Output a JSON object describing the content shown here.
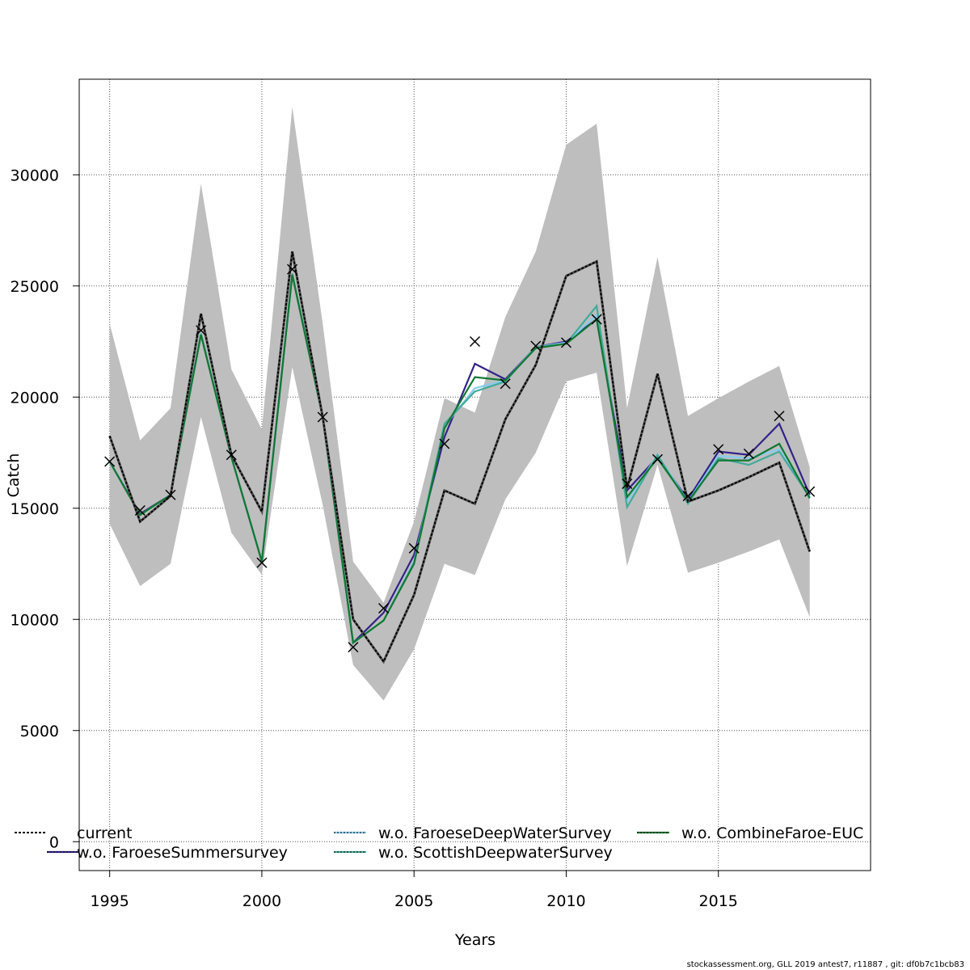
{
  "chart_data": {
    "type": "line",
    "xlabel": "Years",
    "ylabel": "Catch",
    "xlim": [
      1994,
      2020
    ],
    "ylim": [
      -1300,
      34300
    ],
    "grid": true,
    "x_ticks": [
      1995,
      2000,
      2005,
      2010,
      2015
    ],
    "y_ticks": [
      0,
      5000,
      10000,
      15000,
      20000,
      25000,
      30000
    ],
    "legend_position": "bottom",
    "x": [
      1995,
      1996,
      1997,
      1998,
      1999,
      2000,
      2001,
      2002,
      2003,
      2004,
      2005,
      2006,
      2007,
      2008,
      2009,
      2010,
      2011,
      2012,
      2013,
      2014,
      2015,
      2016,
      2017,
      2018
    ],
    "observed": [
      17100,
      14900,
      15600,
      23000,
      17400,
      12550,
      25750,
      19100,
      8750,
      10500,
      13200,
      17900,
      22500,
      20600,
      22300,
      22450,
      23500,
      16100,
      17200,
      15550,
      17650,
      17450,
      19150,
      15750
    ],
    "band": {
      "color": "#bebebe",
      "upper": [
        23300,
        18050,
        19500,
        29600,
        21250,
        18550,
        33050,
        23300,
        12600,
        10750,
        14400,
        19950,
        19300,
        23600,
        26550,
        31350,
        32300,
        19500,
        26300,
        19150,
        19950,
        20700,
        21400,
        16850
      ],
      "lower": [
        14300,
        11500,
        12500,
        19100,
        13900,
        12000,
        21350,
        15150,
        7950,
        6350,
        8650,
        12500,
        12000,
        15400,
        17500,
        20700,
        21100,
        12400,
        16950,
        12100,
        12550,
        13050,
        13600,
        10100
      ]
    },
    "series": [
      {
        "name": "current",
        "color": "#000000",
        "style": "dashed",
        "values": [
          18250,
          14400,
          15550,
          23750,
          17400,
          14850,
          26550,
          19100,
          10000,
          8100,
          11100,
          15800,
          15200,
          19000,
          21450,
          25450,
          26100,
          15900,
          21050,
          15300,
          15800,
          16400,
          17050,
          13050
        ]
      },
      {
        "name": "w.o. FaroeseSummersurvey",
        "color": "#332288",
        "style": "solid",
        "values": [
          17100,
          14750,
          15600,
          22850,
          17300,
          12600,
          25550,
          19100,
          8950,
          10300,
          12900,
          18200,
          21500,
          20800,
          22250,
          22500,
          23500,
          15800,
          17300,
          15400,
          17550,
          17400,
          18800,
          15600
        ]
      },
      {
        "name": "w.o. FaroeseDeepWaterSurvey",
        "color": "#88CCEE",
        "style": "solid",
        "values": [
          17100,
          14700,
          15600,
          22850,
          17300,
          12600,
          25550,
          19100,
          8950,
          9950,
          12600,
          18700,
          20400,
          20750,
          22250,
          22450,
          23700,
          15300,
          17400,
          15300,
          17350,
          17250,
          17650,
          15500
        ]
      },
      {
        "name": "w.o. ScottishDeepwaterSurvey",
        "color": "#44AA99",
        "style": "solid",
        "values": [
          17100,
          14700,
          15600,
          22850,
          17300,
          12600,
          25550,
          19100,
          8950,
          9950,
          12550,
          18800,
          20250,
          20700,
          22250,
          22400,
          24100,
          15050,
          17400,
          15200,
          17250,
          16950,
          17550,
          15500
        ]
      },
      {
        "name": "w.o. CombineFaroe-EUC",
        "color": "#117733",
        "style": "solid",
        "values": [
          17100,
          14700,
          15600,
          22800,
          17300,
          12600,
          25500,
          19100,
          8950,
          9950,
          12500,
          18600,
          20900,
          20750,
          22200,
          22400,
          23500,
          15500,
          17250,
          15300,
          17150,
          17150,
          17900,
          15450
        ]
      }
    ]
  },
  "footer": "stockassessment.org, GLL  2019  antest7, r11887 , git: df0b7c1bcb83"
}
